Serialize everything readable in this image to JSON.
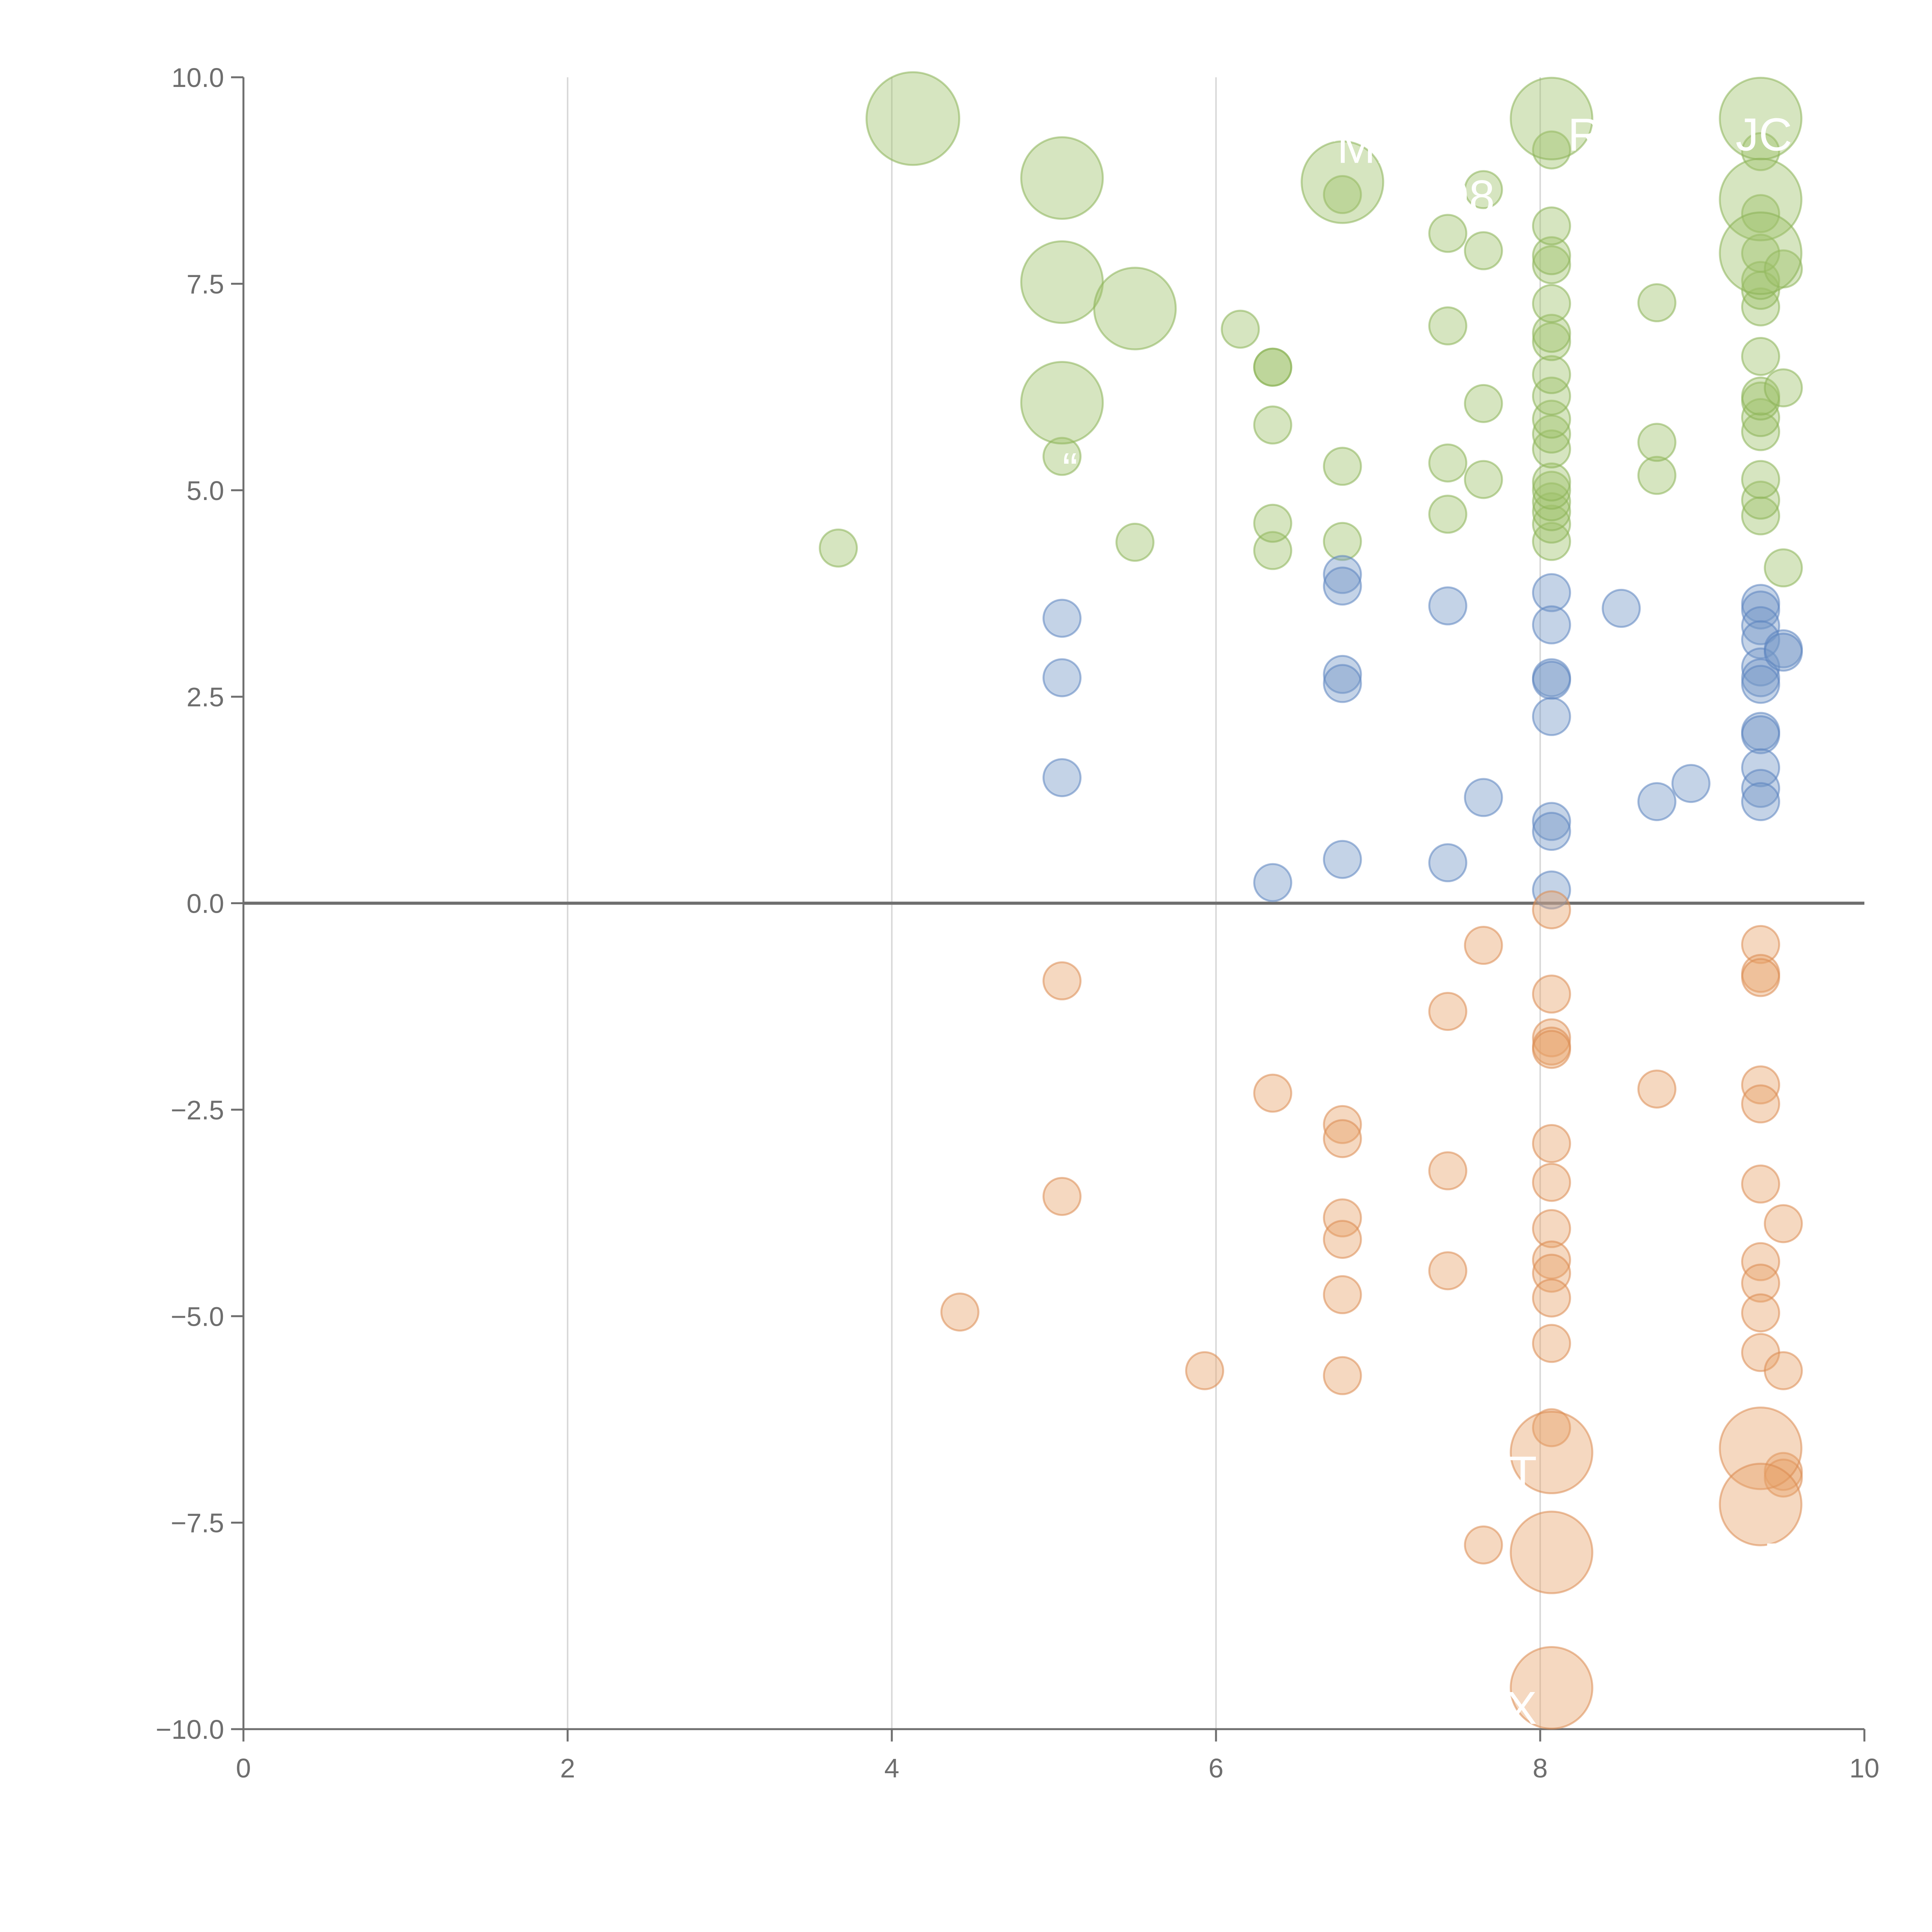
{
  "chart_data": {
    "type": "scatter",
    "title": "",
    "xlabel": "",
    "ylabel": "",
    "xlim": [
      0,
      10
    ],
    "ylim": [
      -10,
      10
    ],
    "x_ticks": [
      "0",
      "2",
      "4",
      "6",
      "8",
      "10"
    ],
    "y_ticks": [
      "10.0",
      "7.5",
      "5.0",
      "2.5",
      "0.0",
      "−2.5",
      "−5.0",
      "−7.5",
      "−10.0"
    ],
    "grid": "vertical",
    "baseline_y": 0,
    "colors": {
      "green_fill": "#9dc16a",
      "green_stroke": "#8ab356",
      "blue_fill": "#7295c6",
      "blue_stroke": "#5b83c0",
      "orange_fill": "#e8a16a",
      "orange_stroke": "#db8a50",
      "axis": "#6e6e6e",
      "grid": "#d9d9d9",
      "label": "#ffffff"
    },
    "series": [
      {
        "name": "green",
        "color": "#9dc16a",
        "points": [
          [
            3.67,
            4.3,
            1
          ],
          [
            5.5,
            4.37,
            1
          ],
          [
            6.35,
            4.27,
            1
          ],
          [
            6.35,
            4.6,
            1
          ],
          [
            6.35,
            5.79,
            1
          ],
          [
            6.35,
            6.49,
            1
          ],
          [
            6.35,
            6.49,
            1
          ],
          [
            6.15,
            6.95,
            1
          ],
          [
            6.78,
            4.38,
            1
          ],
          [
            6.78,
            5.29,
            1
          ],
          [
            6.78,
            8.58,
            1
          ],
          [
            7.43,
            4.71,
            1
          ],
          [
            7.43,
            5.33,
            1
          ],
          [
            7.43,
            6.99,
            1
          ],
          [
            7.43,
            8.11,
            1
          ],
          [
            7.65,
            5.13,
            1
          ],
          [
            7.65,
            6.05,
            1
          ],
          [
            7.65,
            7.9,
            1
          ],
          [
            7.65,
            8.64,
            1
          ],
          [
            8.07,
            4.38,
            1
          ],
          [
            8.07,
            4.59,
            1
          ],
          [
            8.07,
            4.74,
            1
          ],
          [
            8.07,
            4.86,
            1
          ],
          [
            8.07,
            5.0,
            1
          ],
          [
            8.07,
            5.1,
            1
          ],
          [
            8.07,
            5.5,
            1
          ],
          [
            8.07,
            5.68,
            1
          ],
          [
            8.07,
            5.86,
            1
          ],
          [
            8.07,
            6.14,
            1
          ],
          [
            8.07,
            6.4,
            1
          ],
          [
            8.07,
            6.8,
            1
          ],
          [
            8.07,
            6.9,
            1
          ],
          [
            8.07,
            7.26,
            1
          ],
          [
            8.07,
            7.73,
            1
          ],
          [
            8.07,
            7.84,
            1
          ],
          [
            8.07,
            8.2,
            1
          ],
          [
            8.07,
            9.12,
            1
          ],
          [
            8.72,
            5.18,
            1
          ],
          [
            8.72,
            5.58,
            1
          ],
          [
            8.72,
            7.27,
            1
          ],
          [
            9.36,
            4.69,
            1
          ],
          [
            9.36,
            4.88,
            1
          ],
          [
            9.36,
            5.13,
            1
          ],
          [
            9.36,
            5.71,
            1
          ],
          [
            9.36,
            5.88,
            1
          ],
          [
            9.36,
            6.08,
            1
          ],
          [
            9.36,
            6.14,
            1
          ],
          [
            9.36,
            6.62,
            1
          ],
          [
            9.36,
            7.22,
            1
          ],
          [
            9.36,
            7.42,
            1
          ],
          [
            9.36,
            7.54,
            1
          ],
          [
            9.36,
            7.87,
            1
          ],
          [
            9.36,
            8.35,
            1
          ],
          [
            9.36,
            9.1,
            1
          ],
          [
            9.5,
            4.06,
            1
          ],
          [
            9.5,
            6.24,
            1
          ],
          [
            9.5,
            7.68,
            1
          ],
          [
            5.05,
            5.41,
            1
          ],
          [
            4.13,
            9.5,
            2.5
          ],
          [
            5.05,
            8.78,
            2.2
          ],
          [
            5.05,
            7.52,
            2.2
          ],
          [
            5.5,
            7.2,
            2.2
          ],
          [
            5.05,
            6.06,
            2.2
          ],
          [
            6.78,
            8.73,
            2.2
          ],
          [
            8.07,
            9.5,
            2.2
          ],
          [
            9.36,
            9.5,
            2.2
          ],
          [
            9.36,
            8.52,
            2.2
          ],
          [
            9.36,
            7.87,
            2.2
          ]
        ]
      },
      {
        "name": "blue",
        "color": "#7295c6",
        "points": [
          [
            5.05,
            3.45,
            1
          ],
          [
            5.05,
            2.73,
            1
          ],
          [
            5.05,
            1.52,
            1
          ],
          [
            6.35,
            0.25,
            1
          ],
          [
            6.78,
            3.98,
            1
          ],
          [
            6.78,
            3.84,
            1
          ],
          [
            6.78,
            2.77,
            1
          ],
          [
            6.78,
            2.66,
            1
          ],
          [
            6.78,
            0.53,
            1
          ],
          [
            7.43,
            3.6,
            1
          ],
          [
            7.43,
            0.49,
            1
          ],
          [
            7.65,
            1.28,
            1
          ],
          [
            8.07,
            3.76,
            1
          ],
          [
            8.07,
            3.37,
            1
          ],
          [
            8.07,
            2.73,
            1
          ],
          [
            8.07,
            2.7,
            1
          ],
          [
            8.07,
            2.26,
            1
          ],
          [
            8.07,
            0.99,
            1
          ],
          [
            8.07,
            0.87,
            1
          ],
          [
            8.07,
            0.16,
            1
          ],
          [
            8.5,
            3.57,
            1
          ],
          [
            8.72,
            1.23,
            1
          ],
          [
            8.93,
            1.45,
            1
          ],
          [
            9.36,
            3.63,
            1
          ],
          [
            9.36,
            3.55,
            1
          ],
          [
            9.36,
            3.36,
            1
          ],
          [
            9.36,
            3.19,
            1
          ],
          [
            9.36,
            2.86,
            1
          ],
          [
            9.36,
            2.73,
            1
          ],
          [
            9.36,
            2.65,
            1
          ],
          [
            9.36,
            2.08,
            1
          ],
          [
            9.36,
            2.04,
            1
          ],
          [
            9.36,
            1.64,
            1
          ],
          [
            9.36,
            1.39,
            1
          ],
          [
            9.36,
            1.23,
            1
          ],
          [
            9.5,
            3.08,
            1
          ],
          [
            9.5,
            3.04,
            1
          ]
        ]
      },
      {
        "name": "orange",
        "color": "#e8a16a",
        "points": [
          [
            4.42,
            -4.95,
            1
          ],
          [
            5.05,
            -0.94,
            1
          ],
          [
            5.05,
            -3.55,
            1
          ],
          [
            5.93,
            -5.66,
            1
          ],
          [
            6.35,
            -2.3,
            1
          ],
          [
            6.78,
            -2.68,
            1
          ],
          [
            6.78,
            -2.85,
            1
          ],
          [
            6.78,
            -3.81,
            1
          ],
          [
            6.78,
            -4.07,
            1
          ],
          [
            6.78,
            -4.74,
            1
          ],
          [
            6.78,
            -5.72,
            1
          ],
          [
            7.43,
            -1.31,
            1
          ],
          [
            7.43,
            -3.24,
            1
          ],
          [
            7.43,
            -4.45,
            1
          ],
          [
            7.65,
            -0.51,
            1
          ],
          [
            7.65,
            -7.77,
            1
          ],
          [
            8.07,
            -0.08,
            1
          ],
          [
            8.07,
            -1.1,
            1
          ],
          [
            8.07,
            -1.63,
            1
          ],
          [
            8.07,
            -1.73,
            1
          ],
          [
            8.07,
            -1.77,
            1
          ],
          [
            8.07,
            -2.91,
            1
          ],
          [
            8.07,
            -3.38,
            1
          ],
          [
            8.07,
            -3.94,
            1
          ],
          [
            8.07,
            -4.32,
            1
          ],
          [
            8.07,
            -4.48,
            1
          ],
          [
            8.07,
            -4.78,
            1
          ],
          [
            8.07,
            -5.33,
            1
          ],
          [
            8.07,
            -6.35,
            1
          ],
          [
            8.72,
            -2.25,
            1
          ],
          [
            9.36,
            -0.5,
            1
          ],
          [
            9.36,
            -0.85,
            1
          ],
          [
            9.36,
            -0.9,
            1
          ],
          [
            9.36,
            -2.2,
            1
          ],
          [
            9.36,
            -2.43,
            1
          ],
          [
            9.36,
            -3.4,
            1
          ],
          [
            9.36,
            -4.34,
            1
          ],
          [
            9.36,
            -4.6,
            1
          ],
          [
            9.36,
            -4.96,
            1
          ],
          [
            9.36,
            -5.44,
            1
          ],
          [
            9.5,
            -3.88,
            1
          ],
          [
            9.5,
            -5.66,
            1
          ],
          [
            9.5,
            -6.88,
            1
          ],
          [
            9.5,
            -6.96,
            1
          ],
          [
            8.07,
            -6.65,
            2.2
          ],
          [
            9.36,
            -6.6,
            2.2
          ],
          [
            9.36,
            -7.28,
            2.2
          ],
          [
            8.07,
            -7.86,
            2.2
          ],
          [
            8.07,
            -9.5,
            2.2
          ]
        ]
      }
    ],
    "annotations": [
      {
        "text": "“Mi",
        "x": 6.85,
        "y": 9.15,
        "anchor": "middle"
      },
      {
        "text": "98",
        "x": 7.72,
        "y": 8.55,
        "anchor": "end"
      },
      {
        "text": "R",
        "x": 8.17,
        "y": 9.3,
        "anchor": "start"
      },
      {
        "text": "JC",
        "x": 9.38,
        "y": 9.3,
        "anchor": "middle"
      },
      {
        "text": "“",
        "x": 5.1,
        "y": 5.25,
        "anchor": "middle"
      },
      {
        "text": "T",
        "x": 7.98,
        "y": -6.9,
        "anchor": "end"
      },
      {
        "text": "D",
        "x": 9.48,
        "y": -7.95,
        "anchor": "middle"
      },
      {
        "text": "X",
        "x": 7.98,
        "y": -9.75,
        "anchor": "end"
      }
    ]
  }
}
